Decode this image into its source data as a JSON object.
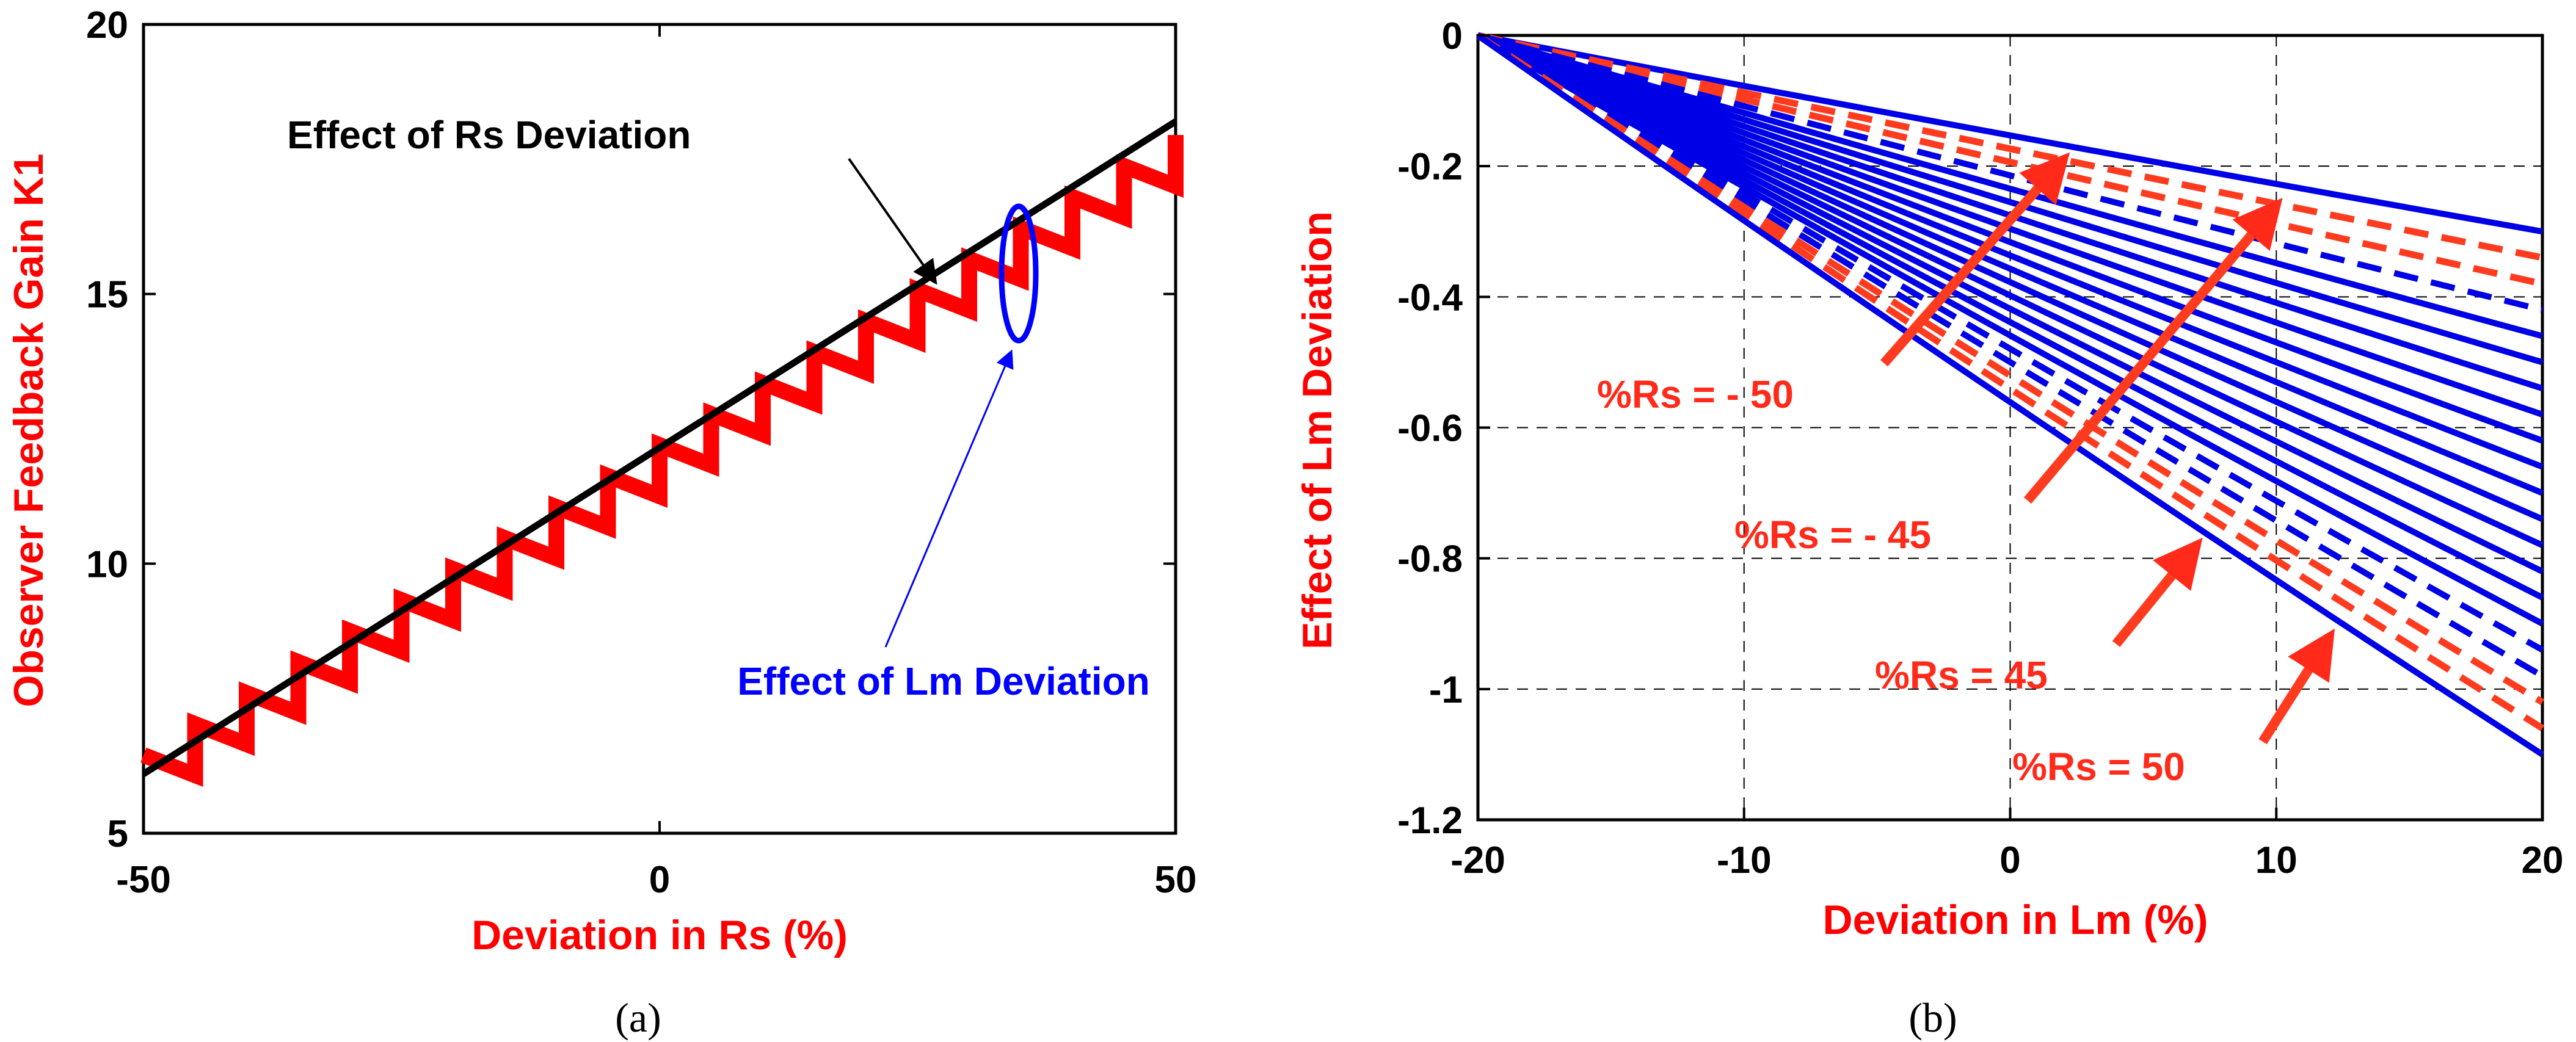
{
  "chart_data": [
    {
      "panel": "a",
      "type": "line",
      "caption": "(a)",
      "xlabel": "Deviation in Rs (%)",
      "ylabel": "Observer Feedback Gain K1",
      "xlim": [
        -50,
        50
      ],
      "ylim": [
        5,
        20
      ],
      "xticks": [
        "-50",
        "0",
        "50"
      ],
      "yticks": [
        "5",
        "10",
        "15",
        "20"
      ],
      "grid": false,
      "series": [
        {
          "name": "Effect of Rs Deviation",
          "color": "#000000",
          "x": [
            -50,
            50
          ],
          "y": [
            6.1,
            18.2
          ]
        },
        {
          "name": "Effect of Lm Deviation",
          "color": "#ff0000",
          "style": "sawtooth",
          "x_start": -50,
          "x_end": 50,
          "period": 5,
          "lower_start": 5.5,
          "lower_end": 17.0,
          "tooth_height": 0.95
        }
      ],
      "annotations": [
        {
          "text": "Effect of Rs Deviation",
          "color": "#000000",
          "points_to": [
            26,
            15.2
          ]
        },
        {
          "text": "Effect of Lm Deviation",
          "color": "#0000ff",
          "points_to": [
            35,
            15.8
          ]
        }
      ]
    },
    {
      "panel": "b",
      "type": "line",
      "caption": "(b)",
      "xlabel": "Deviation in Lm (%)",
      "ylabel": "Effect of Lm Deviation",
      "xlim": [
        -20,
        20
      ],
      "ylim": [
        -1.2,
        0
      ],
      "xticks": [
        "-20",
        "-10",
        "0",
        "10",
        "20"
      ],
      "yticks": [
        "0",
        "-0.2",
        "-0.4",
        "-0.6",
        "-0.8",
        "-1",
        "-1.2"
      ],
      "grid": true,
      "family_start": [
        -20,
        0
      ],
      "series_end_values_at_20": [
        -0.3,
        -0.34,
        -0.38,
        -0.42,
        -0.46,
        -0.5,
        -0.54,
        -0.58,
        -0.62,
        -0.66,
        -0.7,
        -0.74,
        -0.78,
        -0.82,
        -0.86,
        -0.9,
        -0.94,
        -0.98,
        -1.02,
        -1.06,
        -1.1
      ],
      "series_labels": [
        "%Rs = - 50",
        "%Rs = - 45",
        "%Rs = 45",
        "%Rs = 50"
      ],
      "highlight_series": [
        {
          "label": "%Rs = - 50",
          "end_value": -0.34,
          "color": "#ff3b1f",
          "dashed": true,
          "arrow_to": [
            2,
            -0.19
          ]
        },
        {
          "label": "%Rs = - 45",
          "end_value": -0.38,
          "color": "#ff3b1f",
          "dashed": true,
          "arrow_to": [
            10,
            -0.26
          ]
        },
        {
          "label": "%Rs = 45",
          "end_value": -1.02,
          "color": "#ff3b1f",
          "dashed": true,
          "arrow_to": [
            7,
            -0.78
          ]
        },
        {
          "label": "%Rs = 50",
          "end_value": -1.06,
          "color": "#ff3b1f",
          "dashed": true,
          "arrow_to": [
            12,
            -0.92
          ]
        }
      ],
      "colors": {
        "family": "#0000e6",
        "highlight": "#ff3b1f"
      }
    }
  ]
}
